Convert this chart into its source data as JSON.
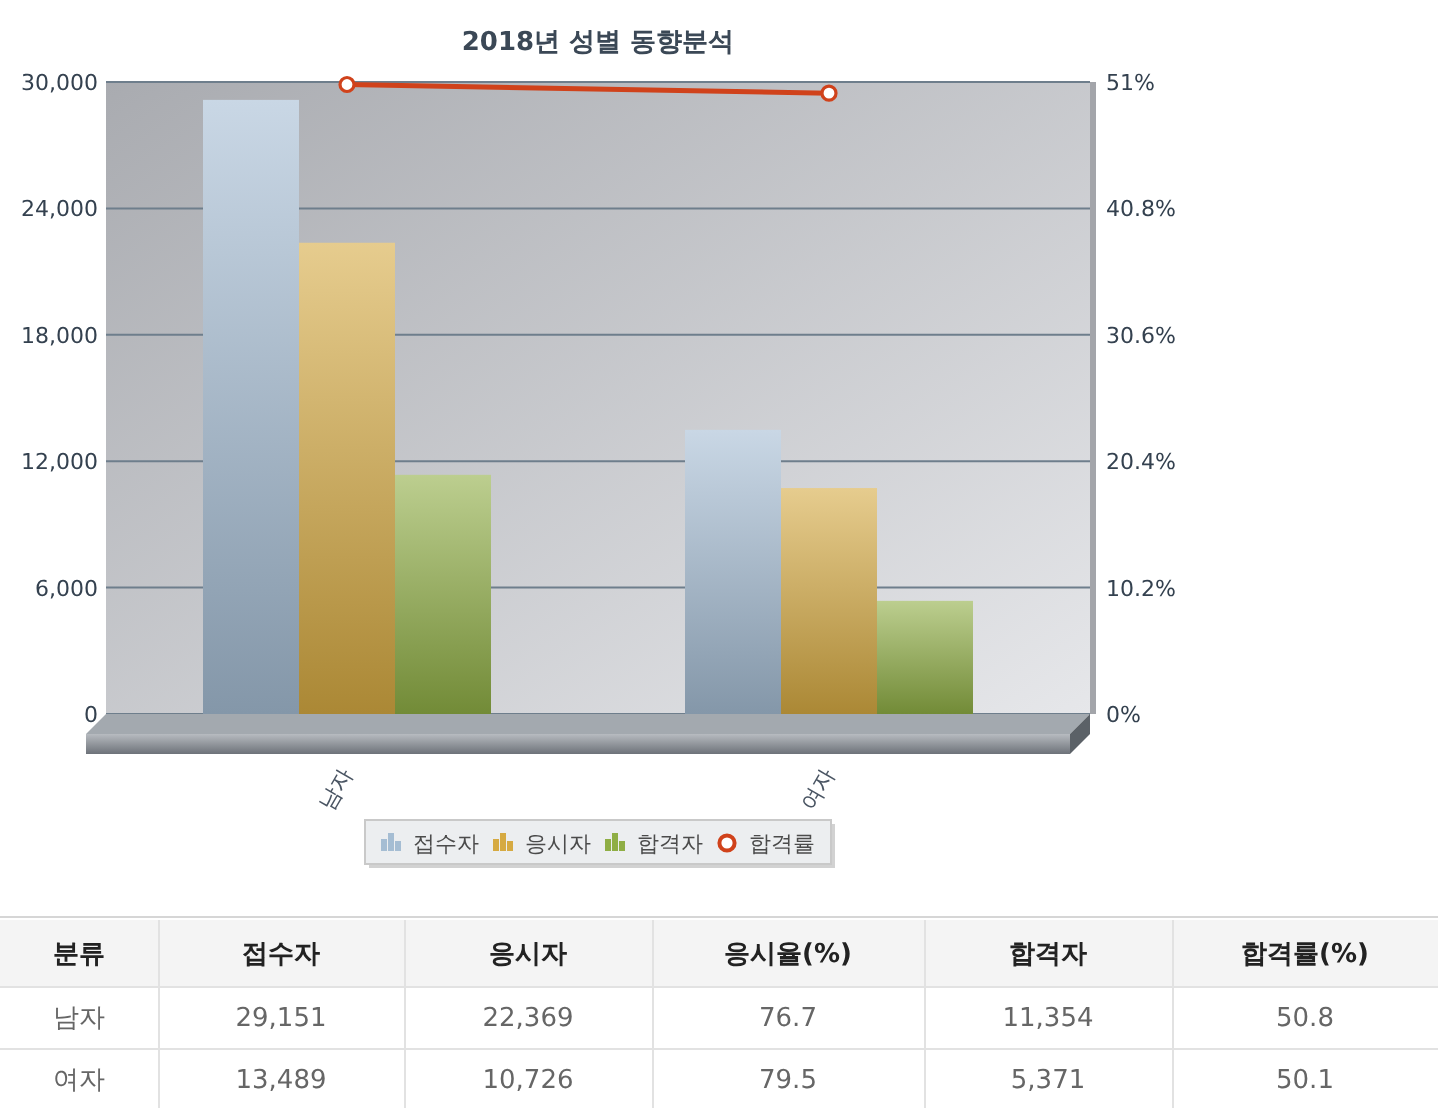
{
  "chart_data": [
    {
      "type": "bar",
      "title": "2018년 성별 동향분석",
      "categories": [
        "남자",
        "여자"
      ],
      "series": [
        {
          "name": "접수자",
          "color": "#a5bdd3",
          "values": [
            29151,
            13489
          ]
        },
        {
          "name": "응시자",
          "color": "#d6aa42",
          "values": [
            22369,
            10726
          ]
        },
        {
          "name": "합격자",
          "color": "#8fae45",
          "values": [
            11354,
            5371
          ]
        },
        {
          "name": "합격률",
          "type": "line",
          "axis": "y2",
          "color": "#d0421b",
          "values": [
            50.8,
            50.1
          ]
        }
      ],
      "ylim": [
        0,
        30000
      ],
      "yticks": [
        0,
        {
          "value": 6000,
          "label": "6,000"
        },
        {
          "value": 12000,
          "label": "12,000"
        },
        {
          "value": 18000,
          "label": "18,000"
        },
        {
          "value": 24000,
          "label": "24,000"
        },
        {
          "value": 30000,
          "label": "30,000"
        }
      ],
      "y2lim": [
        0,
        51
      ],
      "y2ticks": [
        {
          "value": 0,
          "label": "0%"
        },
        {
          "value": 10.2,
          "label": "10.2%"
        },
        {
          "value": 20.4,
          "label": "20.4%"
        },
        {
          "value": 30.6,
          "label": "30.6%"
        },
        {
          "value": 40.8,
          "label": "40.8%"
        },
        {
          "value": 51,
          "label": "51%"
        }
      ],
      "grid": "y",
      "legend": "bottom",
      "marker": "circle",
      "line_style": "solid"
    },
    {
      "type": "other",
      "xlabel": "분류",
      "categories": [
        "남자",
        "여자"
      ],
      "series": [
        {
          "name": "접수자",
          "values": [
            29151,
            13489
          ],
          "value_labels": [
            "29,151",
            "13,489"
          ]
        },
        {
          "name": "응시자",
          "values": [
            22369,
            10726
          ],
          "value_labels": [
            "22,369",
            "10,726"
          ]
        },
        {
          "name": "응시율(%)",
          "values": [
            76.7,
            79.5
          ],
          "value_labels": [
            "76.7",
            "79.5"
          ]
        },
        {
          "name": "합격자",
          "values": [
            11354,
            5371
          ],
          "value_labels": [
            "11,354",
            "5,371"
          ]
        },
        {
          "name": "합격률(%)",
          "values": [
            50.8,
            50.1
          ],
          "value_labels": [
            "50.8",
            "50.1"
          ]
        }
      ]
    }
  ]
}
